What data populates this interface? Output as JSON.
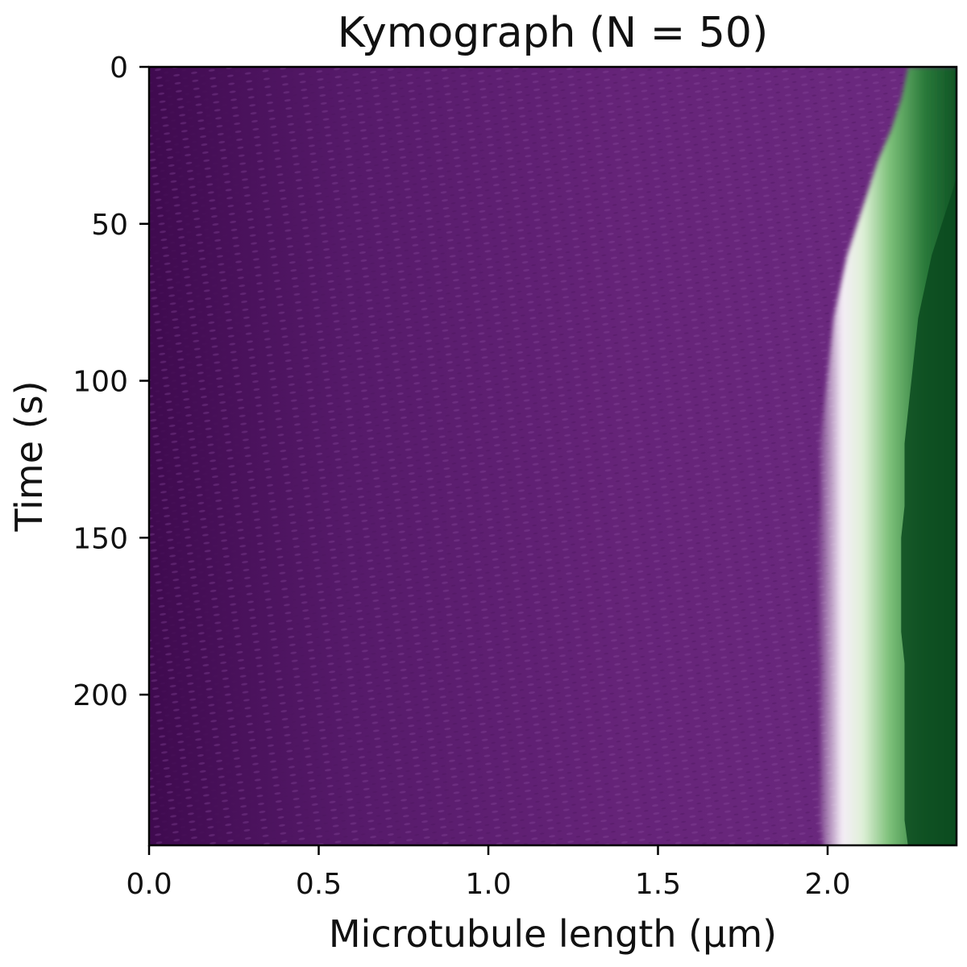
{
  "chart_data": {
    "type": "heatmap",
    "title": "Kymograph (N = 50)",
    "xlabel": "Microtubule length (μm)",
    "ylabel": "Time (s)",
    "xlim": [
      0.0,
      2.38
    ],
    "ylim": [
      0,
      248
    ],
    "y_inverted": true,
    "xticks": [
      0.0,
      0.5,
      1.0,
      1.5,
      2.0
    ],
    "xtick_labels": [
      "0.0",
      "0.5",
      "1.0",
      "1.5",
      "2.0"
    ],
    "yticks": [
      0,
      50,
      100,
      150,
      200
    ],
    "ytick_labels": [
      "0",
      "50",
      "100",
      "150",
      "200"
    ],
    "colormap": {
      "low": "#40004b",
      "mid": "#f7f7f7",
      "high": "#00441b",
      "body_color": "#6a2a7e",
      "transition_light": "#a6dba0"
    },
    "boundary": {
      "description_values_time_s": [
        0,
        10,
        20,
        30,
        40,
        50,
        60,
        70,
        80,
        90,
        100,
        110,
        120,
        130,
        140,
        150,
        160,
        170,
        180,
        190,
        200,
        210,
        220,
        230,
        240,
        248
      ],
      "front_position_um": [
        2.38,
        2.36,
        2.33,
        2.29,
        2.26,
        2.23,
        2.2,
        2.18,
        2.16,
        2.15,
        2.14,
        2.13,
        2.12,
        2.12,
        2.12,
        2.11,
        2.11,
        2.11,
        2.11,
        2.12,
        2.12,
        2.12,
        2.12,
        2.12,
        2.12,
        2.13
      ]
    },
    "grid": false
  }
}
